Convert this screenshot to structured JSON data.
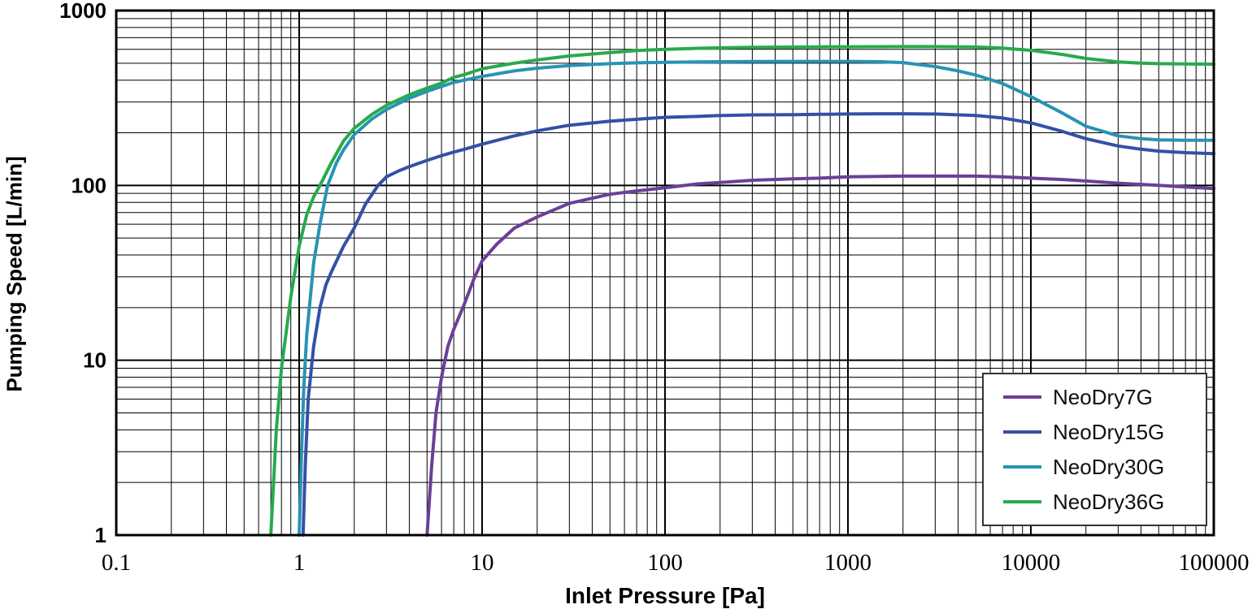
{
  "chart_data": {
    "type": "line",
    "title": "",
    "xlabel": "Inlet Pressure [Pa]",
    "ylabel": "Pumping Speed [L/min]",
    "x_scale": "log",
    "y_scale": "log",
    "xlim": [
      0.1,
      100000
    ],
    "ylim": [
      1,
      1000
    ],
    "x_ticks": [
      {
        "v": 0.1,
        "label": "0.1"
      },
      {
        "v": 1,
        "label": "1"
      },
      {
        "v": 10,
        "label": "10"
      },
      {
        "v": 100,
        "label": "100"
      },
      {
        "v": 1000,
        "label": "1000"
      },
      {
        "v": 10000,
        "label": "10000"
      },
      {
        "v": 100000,
        "label": "100000"
      }
    ],
    "y_ticks": [
      {
        "v": 1,
        "label": "1"
      },
      {
        "v": 10,
        "label": "10"
      },
      {
        "v": 100,
        "label": "100"
      },
      {
        "v": 1000,
        "label": "1000"
      }
    ],
    "grid": "full log minor and major gridlines, black on white",
    "legend_position": "lower right",
    "series": [
      {
        "name": "NeoDry7G",
        "color": "#6B3F97",
        "points": [
          [
            5,
            1
          ],
          [
            5.3,
            2.5
          ],
          [
            5.6,
            5
          ],
          [
            6,
            8
          ],
          [
            6.5,
            12
          ],
          [
            7,
            15
          ],
          [
            8,
            21
          ],
          [
            9,
            29
          ],
          [
            10,
            37
          ],
          [
            12,
            46
          ],
          [
            15,
            57
          ],
          [
            20,
            66
          ],
          [
            30,
            79
          ],
          [
            50,
            89
          ],
          [
            70,
            93
          ],
          [
            100,
            97
          ],
          [
            150,
            102
          ],
          [
            200,
            104
          ],
          [
            300,
            107
          ],
          [
            500,
            109
          ],
          [
            700,
            110
          ],
          [
            1000,
            112
          ],
          [
            2000,
            113
          ],
          [
            3000,
            113
          ],
          [
            5000,
            113
          ],
          [
            7000,
            112
          ],
          [
            10000,
            110
          ],
          [
            15000,
            108
          ],
          [
            20000,
            106
          ],
          [
            30000,
            103
          ],
          [
            50000,
            100
          ],
          [
            70000,
            98
          ],
          [
            100000,
            96
          ]
        ]
      },
      {
        "name": "NeoDry15G",
        "color": "#3351A5",
        "points": [
          [
            1.05,
            1
          ],
          [
            1.08,
            2.5
          ],
          [
            1.12,
            6
          ],
          [
            1.2,
            12
          ],
          [
            1.3,
            20
          ],
          [
            1.4,
            27
          ],
          [
            1.5,
            32
          ],
          [
            1.75,
            45
          ],
          [
            2,
            57
          ],
          [
            2.3,
            78
          ],
          [
            2.7,
            100
          ],
          [
            3,
            112
          ],
          [
            3.5,
            121
          ],
          [
            4,
            128
          ],
          [
            5,
            139
          ],
          [
            6,
            148
          ],
          [
            7,
            155
          ],
          [
            8,
            161
          ],
          [
            10,
            172
          ],
          [
            15,
            192
          ],
          [
            20,
            205
          ],
          [
            30,
            221
          ],
          [
            50,
            233
          ],
          [
            70,
            239
          ],
          [
            100,
            245
          ],
          [
            150,
            248
          ],
          [
            200,
            251
          ],
          [
            300,
            253
          ],
          [
            500,
            254
          ],
          [
            700,
            255
          ],
          [
            1000,
            256
          ],
          [
            1500,
            257
          ],
          [
            2000,
            257
          ],
          [
            3000,
            256
          ],
          [
            5000,
            251
          ],
          [
            7000,
            243
          ],
          [
            10000,
            228
          ],
          [
            15000,
            203
          ],
          [
            20000,
            185
          ],
          [
            30000,
            168
          ],
          [
            40000,
            161
          ],
          [
            50000,
            157
          ],
          [
            70000,
            154
          ],
          [
            100000,
            152
          ]
        ]
      },
      {
        "name": "NeoDry30G",
        "color": "#2893B4",
        "points": [
          [
            1.0,
            1
          ],
          [
            1.03,
            3
          ],
          [
            1.06,
            7
          ],
          [
            1.1,
            14
          ],
          [
            1.2,
            36
          ],
          [
            1.3,
            60
          ],
          [
            1.43,
            100
          ],
          [
            1.6,
            135
          ],
          [
            1.75,
            160
          ],
          [
            2,
            195
          ],
          [
            2.5,
            240
          ],
          [
            3,
            272
          ],
          [
            4,
            315
          ],
          [
            5,
            345
          ],
          [
            6,
            368
          ],
          [
            7,
            388
          ],
          [
            8,
            400
          ],
          [
            10,
            420
          ],
          [
            15,
            452
          ],
          [
            20,
            468
          ],
          [
            30,
            485
          ],
          [
            50,
            497
          ],
          [
            70,
            502
          ],
          [
            100,
            506
          ],
          [
            150,
            509
          ],
          [
            200,
            510
          ],
          [
            300,
            511
          ],
          [
            500,
            512
          ],
          [
            700,
            512
          ],
          [
            1000,
            512
          ],
          [
            1500,
            510
          ],
          [
            2000,
            504
          ],
          [
            3000,
            478
          ],
          [
            4000,
            452
          ],
          [
            5000,
            428
          ],
          [
            7000,
            383
          ],
          [
            10000,
            322
          ],
          [
            15000,
            258
          ],
          [
            20000,
            218
          ],
          [
            30000,
            192
          ],
          [
            40000,
            185
          ],
          [
            50000,
            182
          ],
          [
            70000,
            181
          ],
          [
            100000,
            181
          ]
        ]
      },
      {
        "name": "NeoDry36G",
        "color": "#27AA4D",
        "points": [
          [
            0.7,
            1
          ],
          [
            0.75,
            4
          ],
          [
            0.8,
            9
          ],
          [
            0.9,
            23
          ],
          [
            1.0,
            45
          ],
          [
            1.1,
            68
          ],
          [
            1.2,
            86
          ],
          [
            1.3,
            100
          ],
          [
            1.5,
            135
          ],
          [
            1.75,
            180
          ],
          [
            2,
            212
          ],
          [
            2.5,
            255
          ],
          [
            3,
            287
          ],
          [
            4,
            330
          ],
          [
            5,
            360
          ],
          [
            6,
            385
          ],
          [
            7,
            415
          ],
          [
            8,
            430
          ],
          [
            10,
            465
          ],
          [
            15,
            500
          ],
          [
            20,
            522
          ],
          [
            30,
            550
          ],
          [
            50,
            575
          ],
          [
            70,
            590
          ],
          [
            100,
            600
          ],
          [
            150,
            608
          ],
          [
            200,
            612
          ],
          [
            300,
            616
          ],
          [
            500,
            618
          ],
          [
            700,
            620
          ],
          [
            1000,
            621
          ],
          [
            2000,
            622
          ],
          [
            3000,
            622
          ],
          [
            5000,
            619
          ],
          [
            7000,
            610
          ],
          [
            10000,
            592
          ],
          [
            15000,
            560
          ],
          [
            20000,
            532
          ],
          [
            30000,
            508
          ],
          [
            40000,
            500
          ],
          [
            50000,
            497
          ],
          [
            70000,
            495
          ],
          [
            100000,
            494
          ]
        ]
      }
    ]
  }
}
